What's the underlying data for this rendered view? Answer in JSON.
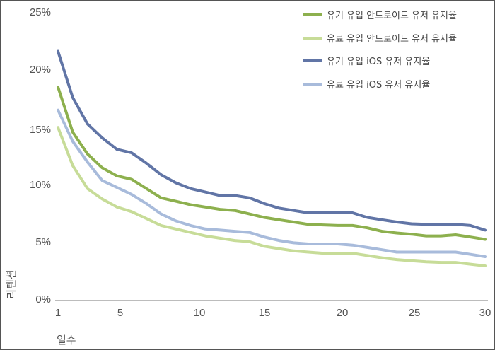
{
  "chart_data": {
    "type": "line",
    "title": "",
    "xlabel": "일수",
    "ylabel": "리텐션",
    "xlim": [
      1,
      30
    ],
    "ylim": [
      0,
      25
    ],
    "x_ticks": [
      "1",
      "5",
      "10",
      "15",
      "20",
      "25",
      "30"
    ],
    "y_ticks": [
      "0%",
      "5%",
      "10%",
      "15%",
      "20%",
      "25%"
    ],
    "grid": false,
    "legend_position": "top-right",
    "x": [
      1,
      2,
      3,
      4,
      5,
      6,
      7,
      8,
      9,
      10,
      11,
      12,
      13,
      14,
      15,
      16,
      17,
      18,
      19,
      20,
      21,
      22,
      23,
      24,
      25,
      26,
      27,
      28,
      29,
      30
    ],
    "series": [
      {
        "name": "유기 유입 안드로이드 유저 유지율",
        "color": "#8db04e",
        "values": [
          18.5,
          14.6,
          12.7,
          11.5,
          10.8,
          10.5,
          9.7,
          8.9,
          8.6,
          8.3,
          8.1,
          7.9,
          7.8,
          7.5,
          7.2,
          7.0,
          6.8,
          6.6,
          6.55,
          6.5,
          6.5,
          6.3,
          6.0,
          5.85,
          5.75,
          5.6,
          5.6,
          5.7,
          5.5,
          5.3
        ]
      },
      {
        "name": "유료 유입 안드로이드 유저 유지율",
        "color": "#c7dc98",
        "values": [
          15.0,
          11.7,
          9.7,
          8.8,
          8.1,
          7.7,
          7.1,
          6.5,
          6.2,
          5.9,
          5.6,
          5.4,
          5.2,
          5.1,
          4.7,
          4.5,
          4.3,
          4.2,
          4.1,
          4.1,
          4.1,
          3.9,
          3.7,
          3.55,
          3.45,
          3.35,
          3.3,
          3.3,
          3.15,
          3.0
        ]
      },
      {
        "name": "유기 유입 iOS 유저 유지율",
        "color": "#6175a6",
        "values": [
          21.6,
          17.6,
          15.3,
          14.1,
          13.1,
          12.8,
          11.9,
          10.9,
          10.2,
          9.7,
          9.4,
          9.1,
          9.1,
          8.9,
          8.4,
          8.0,
          7.8,
          7.6,
          7.6,
          7.6,
          7.6,
          7.2,
          7.0,
          6.8,
          6.65,
          6.6,
          6.6,
          6.6,
          6.5,
          6.1
        ]
      },
      {
        "name": "유료 유입 iOS 유저 유지율",
        "color": "#a8bbdb",
        "values": [
          16.5,
          13.8,
          12.0,
          10.4,
          9.8,
          9.2,
          8.4,
          7.5,
          6.9,
          6.5,
          6.2,
          6.1,
          6.0,
          5.9,
          5.5,
          5.2,
          5.0,
          4.9,
          4.9,
          4.9,
          4.8,
          4.6,
          4.4,
          4.2,
          4.2,
          4.2,
          4.2,
          4.2,
          4.0,
          3.8
        ]
      }
    ]
  }
}
